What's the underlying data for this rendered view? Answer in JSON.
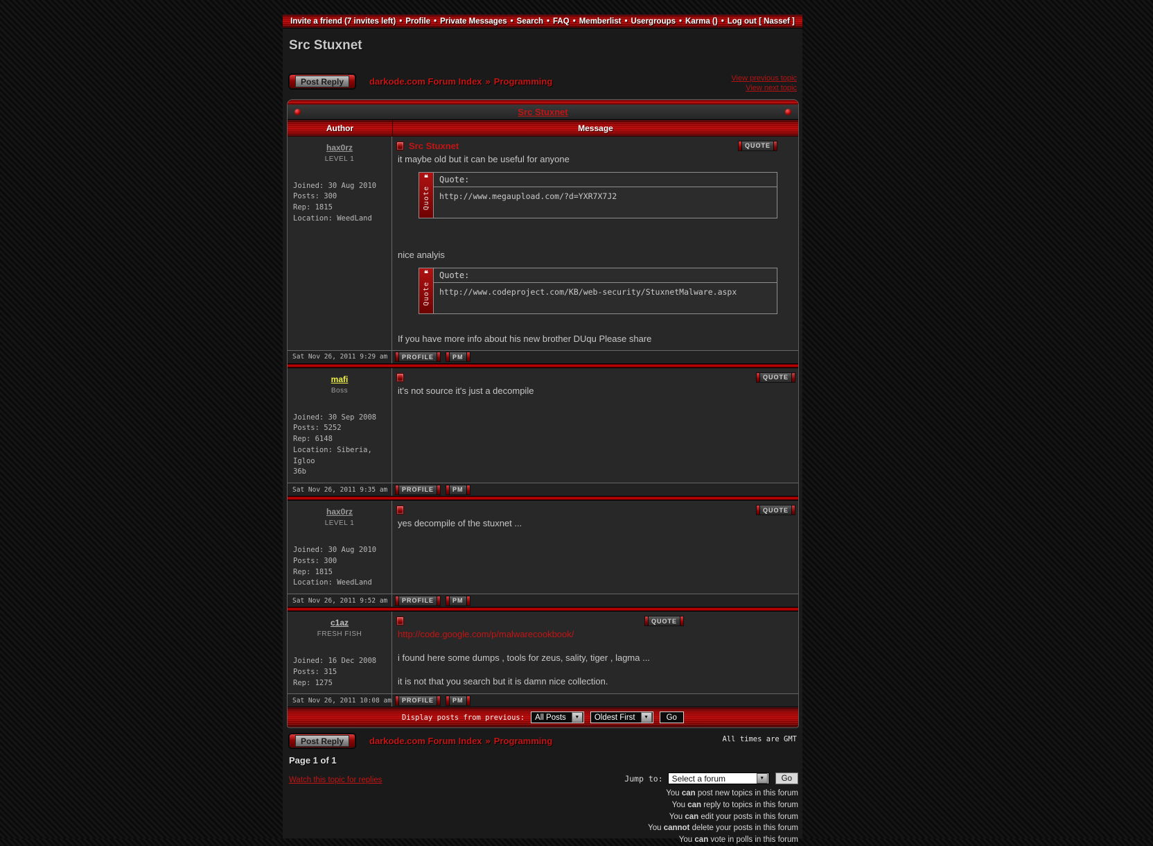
{
  "topbar": {
    "items": [
      "Invite a friend (7 invites left)",
      "Profile",
      "Private Messages",
      "Search",
      "FAQ",
      "Memberlist",
      "Usergroups",
      "Karma ()",
      "Log out [ Nassef ]"
    ],
    "separator": "•"
  },
  "page_title": "Src Stuxnet",
  "nav": {
    "post_reply_label": "Post Reply",
    "breadcrumb": {
      "root": "darkode.com Forum Index",
      "separator": "»",
      "section": "Programming"
    },
    "view_previous_topic": "View previous topic",
    "view_next_topic": "View next topic"
  },
  "topic_table": {
    "title": "Src Stuxnet",
    "columns": {
      "author": "Author",
      "message": "Message"
    },
    "quote_button": "QUOTE",
    "profile_button": "PROFILE",
    "pm_button": "PM",
    "quote_box": {
      "glyph": "❝",
      "side_label": "Quote"
    }
  },
  "posts": [
    {
      "author": "hax0rz",
      "author_color": "#9a9a9a",
      "rank": "LEVEL 1",
      "stats": [
        "Joined: 30 Aug 2010",
        "Posts: 300",
        "Rep: 1815",
        "Location: WeedLand"
      ],
      "subject": "Src Stuxnet",
      "date": "Sat Nov 26, 2011 9:29 am",
      "body": [
        {
          "type": "text",
          "text": "it maybe old but it can be useful for anyone"
        },
        {
          "type": "quote",
          "header": "Quote:",
          "text": "http://www.megaupload.com/?d=YXR7X7J2"
        },
        {
          "type": "text",
          "text": ""
        },
        {
          "type": "text",
          "text": ""
        },
        {
          "type": "text",
          "text": "nice analyis"
        },
        {
          "type": "quote",
          "header": "Quote:",
          "text": "http://www.codeproject.com/KB/web-security/StuxnetMalware.aspx"
        },
        {
          "type": "text",
          "text": ""
        },
        {
          "type": "text",
          "text": "If you have more info about his new brother DUqu Please share"
        }
      ]
    },
    {
      "author": "mafi",
      "author_color": "#f0ef4a",
      "rank": "Boss",
      "stats": [
        "Joined: 30 Sep 2008",
        "Posts: 5252",
        "Rep: 6148",
        "Location: Siberia, Igloo",
        "36b"
      ],
      "subject": "",
      "date": "Sat Nov 26, 2011 9:35 am",
      "body": [
        {
          "type": "text",
          "text": "it's not source it's just a decompile"
        }
      ]
    },
    {
      "author": "hax0rz",
      "author_color": "#9a9a9a",
      "rank": "LEVEL 1",
      "stats": [
        "Joined: 30 Aug 2010",
        "Posts: 300",
        "Rep: 1815",
        "Location: WeedLand"
      ],
      "subject": "",
      "date": "Sat Nov 26, 2011 9:52 am",
      "body": [
        {
          "type": "text",
          "text": "yes decompile of the stuxnet ..."
        }
      ]
    },
    {
      "author": "c1az",
      "author_color": "#c0c0c0",
      "rank": "FRESH FISH",
      "stats": [
        "Joined: 16 Dec 2008",
        "Posts: 315",
        "Rep: 1275"
      ],
      "subject": "",
      "date": "Sat Nov 26, 2011 10:08 am",
      "body": [
        {
          "type": "link",
          "text": "http://code.google.com/p/malwarecookbook/"
        },
        {
          "type": "text",
          "text": ""
        },
        {
          "type": "text",
          "text": "i found here some dumps , tools for zeus, sality, tiger , lagma ..."
        },
        {
          "type": "text",
          "text": ""
        },
        {
          "type": "text",
          "text": "it is not that you search but it is damn nice collection."
        }
      ]
    }
  ],
  "bottom_bar": {
    "label": "Display posts from previous:",
    "posts_filter": "All Posts",
    "sort_order": "Oldest First",
    "go_label": "Go"
  },
  "footer": {
    "all_times": "All times are GMT",
    "page_indicator": "Page 1 of 1",
    "watch_topic_link": "Watch this topic for replies",
    "jump_to_label": "Jump to:",
    "jump_to_value": "Select a forum",
    "go_label": "Go",
    "permissions": [
      {
        "pre": "You ",
        "emph": "can",
        "rest": " post new topics in this forum"
      },
      {
        "pre": "You ",
        "emph": "can",
        "rest": " reply to topics in this forum"
      },
      {
        "pre": "You ",
        "emph": "can",
        "rest": " edit your posts in this forum"
      },
      {
        "pre": "You ",
        "emph": "cannot",
        "rest": " delete your posts in this forum"
      },
      {
        "pre": "You ",
        "emph": "can",
        "rest": " vote in polls in this forum"
      }
    ]
  },
  "colors": {
    "accent_red": "#c30303",
    "link_red": "#c41414",
    "author_yellow": "#f0ef4a"
  }
}
